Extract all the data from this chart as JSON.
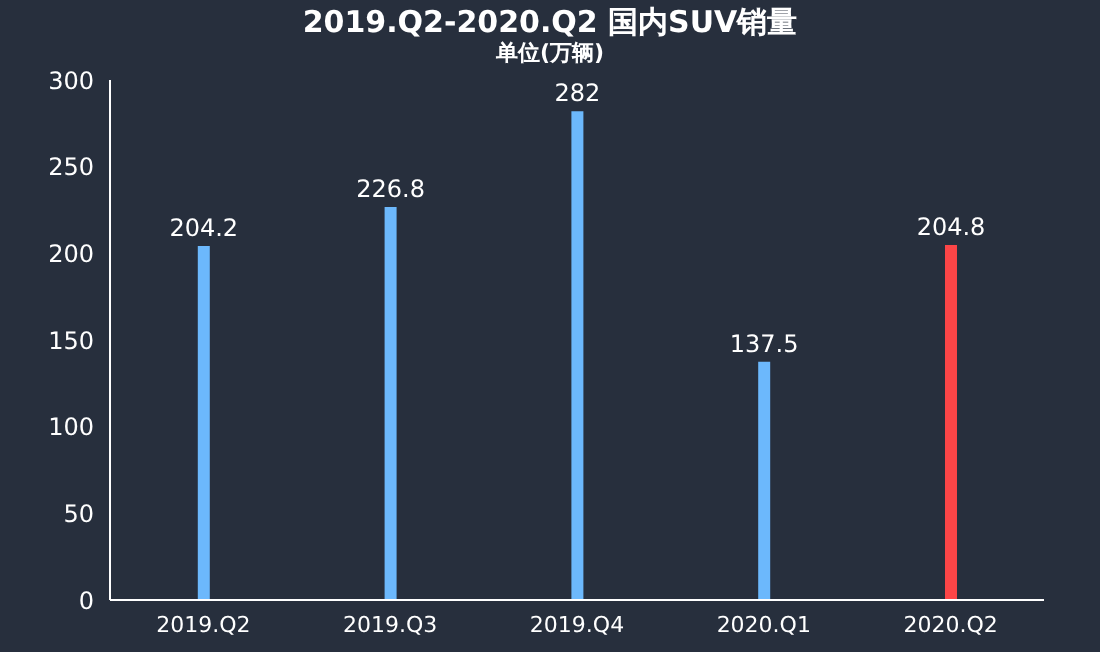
{
  "chart_data": {
    "type": "bar",
    "title": "2019.Q2-2020.Q2 国内SUV销量",
    "subtitle": "单位(万辆)",
    "categories": [
      "2019.Q2",
      "2019.Q3",
      "2019.Q4",
      "2020.Q1",
      "2020.Q2"
    ],
    "values": [
      204.2,
      226.8,
      282,
      137.5,
      204.8
    ],
    "colors": [
      "#6cb8fc",
      "#6cb8fc",
      "#6cb8fc",
      "#6cb8fc",
      "#fc4547"
    ],
    "ylim": [
      0,
      300
    ],
    "yticks": [
      0,
      50,
      100,
      150,
      200,
      250,
      300
    ],
    "grid": false,
    "data_labels": true
  }
}
